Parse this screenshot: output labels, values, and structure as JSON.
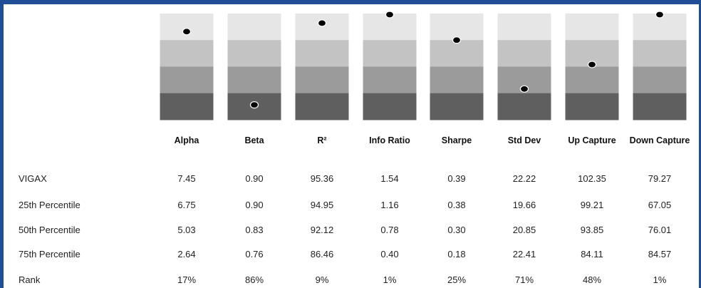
{
  "chart_data": {
    "type": "table",
    "metrics": [
      "Alpha",
      "Beta",
      "R²",
      "Info Ratio",
      "Sharpe",
      "Std Dev",
      "Up Capture",
      "Down Capture"
    ],
    "rows": [
      {
        "label": "VIGAX",
        "values": [
          "7.45",
          "0.90",
          "95.36",
          "1.54",
          "0.39",
          "22.22",
          "102.35",
          "79.27"
        ]
      },
      {
        "label": "25th Percentile",
        "values": [
          "6.75",
          "0.90",
          "94.95",
          "1.16",
          "0.38",
          "19.66",
          "99.21",
          "67.05"
        ]
      },
      {
        "label": "50th Percentile",
        "values": [
          "5.03",
          "0.83",
          "92.12",
          "0.78",
          "0.30",
          "20.85",
          "93.85",
          "76.01"
        ]
      },
      {
        "label": "75th Percentile",
        "values": [
          "2.64",
          "0.76",
          "86.46",
          "0.40",
          "0.18",
          "22.41",
          "84.11",
          "84.57"
        ]
      },
      {
        "label": "Rank",
        "values": [
          "17%",
          "86%",
          "9%",
          "1%",
          "25%",
          "71%",
          "48%",
          "1%"
        ]
      }
    ],
    "rank_percentile": [
      17,
      86,
      9,
      1,
      25,
      71,
      48,
      1
    ],
    "quartile_colors": [
      "#e6e6e6",
      "#c3c3c3",
      "#9b9b9b",
      "#5f5f5f"
    ],
    "marker_color": "#000000"
  }
}
